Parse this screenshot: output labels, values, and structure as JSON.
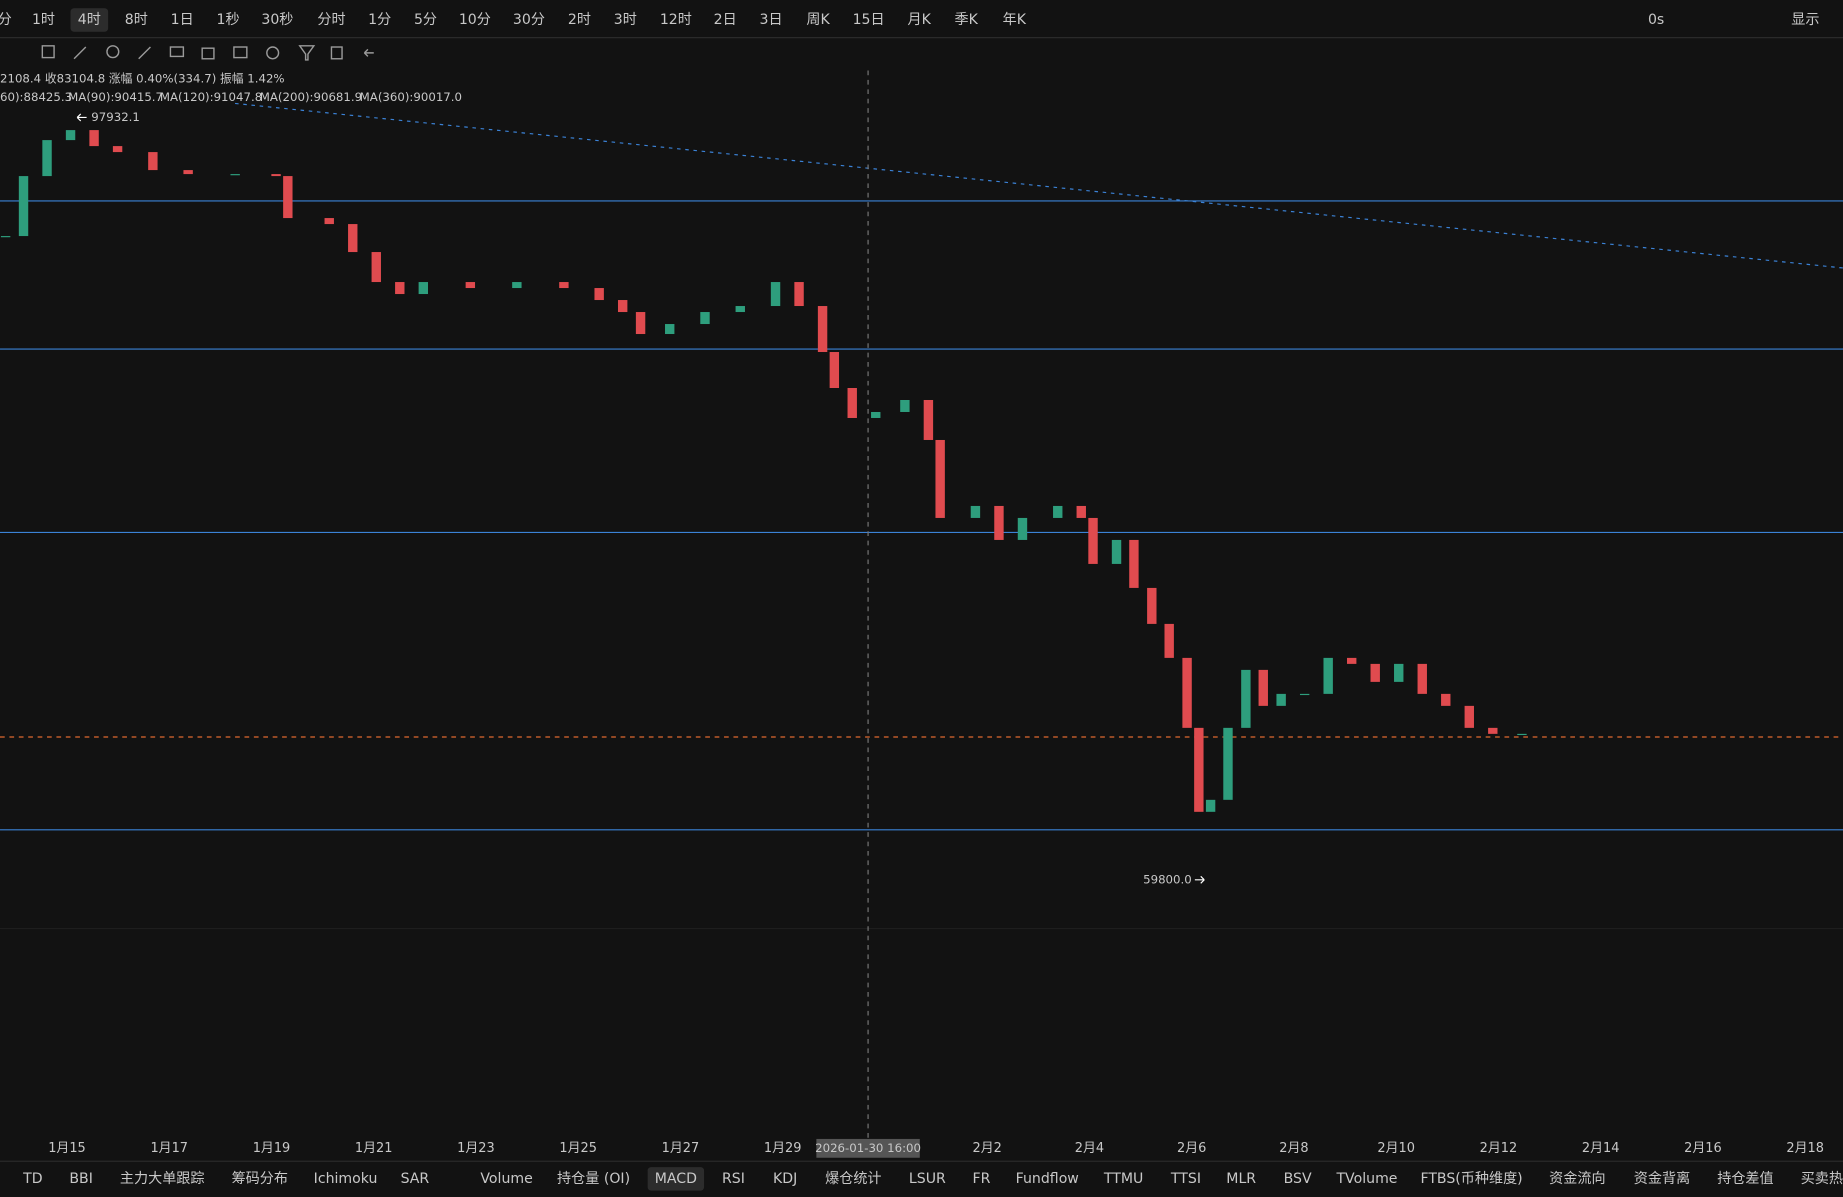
{
  "toolbar": {
    "periods": [
      "分",
      "1时",
      "4时",
      "8时",
      "1日",
      "1秒",
      "30秒",
      "分时",
      "1分",
      "5分",
      "10分",
      "30分",
      "2时",
      "3时",
      "12时",
      "2日",
      "3日",
      "周K",
      "15日",
      "月K",
      "季K",
      "年K"
    ],
    "active": "4时",
    "right": [
      "0s",
      "显示"
    ]
  },
  "info": {
    "quote": "2108.4 收83104.8 涨幅 0.40%(334.7) 振幅 1.42%",
    "ma": [
      {
        "text": "60):88425.3",
        "color": "#3b8fd9"
      },
      {
        "text": "MA(90):90415.7",
        "color": "#d8d060"
      },
      {
        "text": "MA(120):91047.8",
        "color": "#d050b0"
      },
      {
        "text": "MA(200):90681.9",
        "color": "#3aa8e0"
      },
      {
        "text": "MA(360):90017.0",
        "color": "#e06a30"
      }
    ]
  },
  "chart_data": {
    "type": "candlestick",
    "x": [
      13.8,
      14.15,
      14.61,
      15.07,
      15.53,
      15.99,
      16.68,
      17.37,
      18.29,
      19.09,
      19.32,
      20.13,
      20.59,
      21.05,
      21.51,
      21.97,
      22.89,
      23.8,
      24.72,
      25.41,
      25.87,
      26.22,
      26.79,
      27.48,
      28.17,
      28.86,
      29.32,
      29.78,
      30.01,
      30.36,
      30.82,
      31.39,
      31.85,
      32.08,
      32.77,
      33.23,
      33.69,
      34.38,
      34.84,
      35.07,
      35.53,
      35.87,
      36.22,
      36.56,
      36.91,
      37.14,
      37.37,
      37.71,
      38.06,
      38.4,
      38.75,
      39.21,
      39.67,
      40.13,
      40.59,
      41.05,
      41.51,
      41.97,
      42.43,
      42.89,
      43.46
    ],
    "values": [
      92000,
      95000,
      96800,
      97300,
      96500,
      96200,
      95300,
      95100,
      95100,
      95000,
      92900,
      92600,
      91200,
      89700,
      89100,
      89700,
      89400,
      89700,
      89400,
      88800,
      88200,
      87100,
      87600,
      88200,
      88500,
      89700,
      88500,
      86200,
      84400,
      82900,
      83200,
      83800,
      81800,
      77900,
      78500,
      76800,
      77900,
      78500,
      77900,
      75600,
      76800,
      74400,
      72600,
      70900,
      67400,
      63200,
      63800,
      67400,
      70300,
      68500,
      69100,
      69100,
      70900,
      70600,
      69700,
      70600,
      69100,
      68500,
      67400,
      67100,
      67100
    ],
    "up_color": "#2e9e7d",
    "down_color": "#e04b4f",
    "xlim": [
      13.69,
      49.74
    ],
    "ylim": [
      57950,
      100280
    ],
    "xticks": [
      {
        "value": 15,
        "label": "1月15"
      },
      {
        "value": 17,
        "label": "1月17"
      },
      {
        "value": 19,
        "label": "1月19"
      },
      {
        "value": 21,
        "label": "1月21"
      },
      {
        "value": 23,
        "label": "1月23"
      },
      {
        "value": 25,
        "label": "1月25"
      },
      {
        "value": 27,
        "label": "1月27"
      },
      {
        "value": 29,
        "label": "1月29"
      },
      {
        "value": 33,
        "label": "2月2"
      },
      {
        "value": 35,
        "label": "2月4"
      },
      {
        "value": 37,
        "label": "2月6"
      },
      {
        "value": 39,
        "label": "2月8"
      },
      {
        "value": 41,
        "label": "2月10"
      },
      {
        "value": 43,
        "label": "2月12"
      },
      {
        "value": 45,
        "label": "2月14"
      },
      {
        "value": 47,
        "label": "2月16"
      },
      {
        "value": 49,
        "label": "2月18"
      }
    ],
    "levels": [
      93757,
      86348,
      77176,
      62300
    ],
    "level_color": "#3b82d6",
    "last_price": 66943,
    "high": {
      "x": 15.2,
      "value": 97932.1
    },
    "low": {
      "x": 37.2,
      "value": 59800,
      "label": "59800.0"
    },
    "crosshair": {
      "value": 30.67,
      "label": "2026-01-30 16:00"
    }
  },
  "indicators": {
    "tabs": [
      "TD",
      "BBI",
      "主力大单跟踪",
      "筹码分布",
      "Ichimoku",
      "SAR",
      "Volume",
      "持仓量 (OI)",
      "MACD",
      "RSI",
      "KDJ",
      "爆仓统计",
      "LSUR",
      "FR",
      "Fundflow",
      "TTMU",
      "TTSI",
      "MLR",
      "BSV",
      "TVolume",
      "FTBS(币种维度)",
      "资金流向",
      "资金背离",
      "持仓差值",
      "买卖热"
    ],
    "active": "MACD"
  }
}
